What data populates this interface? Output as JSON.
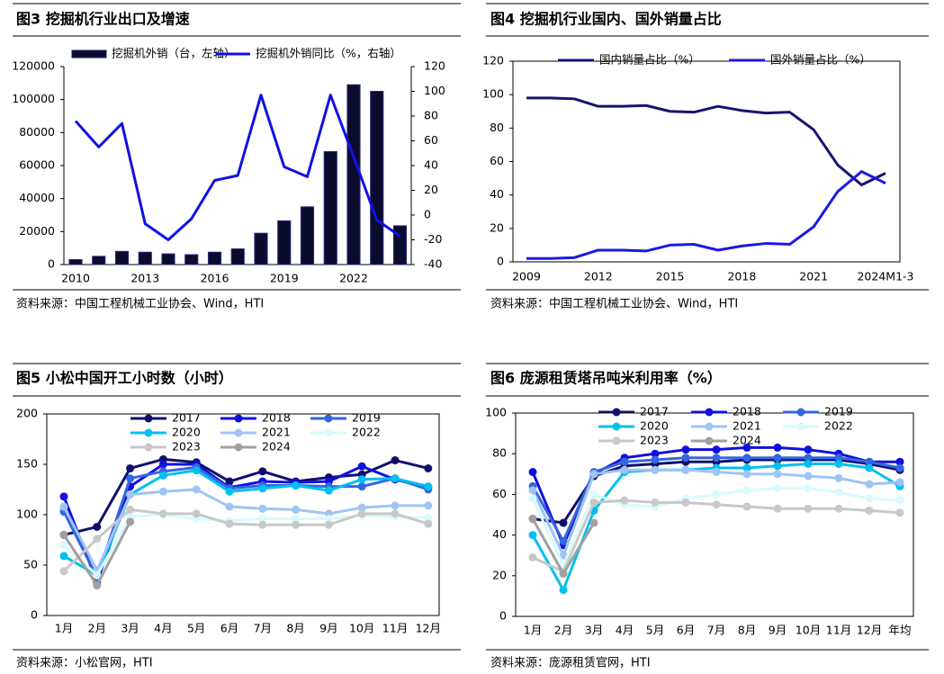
{
  "chart_data": [
    {
      "type": "bar",
      "title": "图3  挖掘机行业出口及增速",
      "source": "资料来源：中国工程机械工业协会、Wind，HTI",
      "categories": [
        "2010",
        null,
        null,
        "2013",
        null,
        null,
        "2016",
        null,
        null,
        "2019",
        null,
        null,
        "2022",
        null,
        null
      ],
      "series": [
        {
          "name": "挖掘机外销（台，左轴）",
          "type": "bar",
          "color": "#0b0b2e",
          "values": [
            3000,
            5000,
            8000,
            7500,
            6500,
            6000,
            7500,
            9500,
            19000,
            26500,
            35000,
            68500,
            109000,
            105000,
            23500
          ]
        },
        {
          "name": "挖掘机外销同比（%，右轴）",
          "type": "line",
          "axis": "y2",
          "color": "#1010e8",
          "values": [
            76,
            55,
            74,
            -7,
            -20,
            -3,
            28,
            32,
            97,
            39,
            31,
            97,
            47,
            -4,
            -17
          ]
        }
      ],
      "ylim": [
        0,
        120000
      ],
      "yticks": [
        0,
        20000,
        40000,
        60000,
        80000,
        100000,
        120000
      ],
      "y2lim": [
        -40,
        120
      ],
      "y2ticks": [
        -40,
        -20,
        0,
        20,
        40,
        60,
        80,
        100,
        120
      ],
      "legend": "top"
    },
    {
      "type": "line",
      "title": "图4  挖掘机行业国内、国外销量占比",
      "source": "资料来源：中国工程机械工业协会、Wind，HTI",
      "categories": [
        "2009",
        null,
        null,
        "2012",
        null,
        null,
        "2015",
        null,
        null,
        "2018",
        null,
        null,
        "2021",
        null,
        null,
        "2024M1-3"
      ],
      "series": [
        {
          "name": "国内销量占比（%）",
          "color": "#15156e",
          "values": [
            98,
            98,
            97.5,
            93,
            93,
            93.5,
            90,
            89.5,
            93,
            90.5,
            89,
            89.5,
            79,
            58,
            46,
            53
          ]
        },
        {
          "name": "国外销量占比（%）",
          "color": "#1a1ae6",
          "values": [
            2,
            2,
            2.5,
            7,
            7,
            6.5,
            10,
            10.5,
            7,
            9.5,
            11,
            10.5,
            21,
            42,
            54,
            47
          ]
        }
      ],
      "ylim": [
        0,
        120
      ],
      "yticks": [
        0,
        20,
        40,
        60,
        80,
        100,
        120
      ],
      "legend": "top"
    },
    {
      "type": "line",
      "title": "图5  小松中国开工小时数（小时）",
      "source": "资料来源：小松官网，HTI",
      "markers": true,
      "categories": [
        "1月",
        "2月",
        "3月",
        "4月",
        "5月",
        "6月",
        "7月",
        "8月",
        "9月",
        "10月",
        "11月",
        "12月"
      ],
      "series": [
        {
          "name": "2017",
          "color": "#10106a",
          "values": [
            80,
            88,
            146,
            155,
            152,
            133,
            143,
            133,
            137,
            140,
            154,
            146
          ]
        },
        {
          "name": "2018",
          "color": "#1010e0",
          "values": [
            118,
            33,
            128,
            150,
            150,
            127,
            133,
            132,
            133,
            148,
            135,
            127
          ]
        },
        {
          "name": "2019",
          "color": "#3566e0",
          "values": [
            103,
            38,
            136,
            143,
            147,
            126,
            129,
            129,
            128,
            128,
            136,
            125
          ]
        },
        {
          "name": "2020",
          "color": "#00c0f0",
          "values": [
            59,
            40,
            120,
            139,
            144,
            123,
            126,
            129,
            124,
            135,
            136,
            128
          ]
        },
        {
          "name": "2021",
          "color": "#a0c4f4",
          "values": [
            108,
            45,
            120,
            123,
            125,
            108,
            106,
            105,
            101,
            107,
            109,
            109
          ]
        },
        {
          "name": "2022",
          "color": "#d8fafc",
          "values": [
            70,
            40,
            98,
            100,
            96,
            94,
            96,
            96,
            96,
            99,
            98,
            97
          ]
        },
        {
          "name": "2023",
          "color": "#c8c8c8",
          "values": [
            44,
            76,
            105,
            101,
            101,
            91,
            90,
            90,
            90,
            101,
            101,
            91
          ]
        },
        {
          "name": "2024",
          "color": "#a0a0a0",
          "values": [
            80,
            30,
            93,
            null,
            null,
            null,
            null,
            null,
            null,
            null,
            null,
            null
          ]
        }
      ],
      "ylim": [
        0,
        200
      ],
      "yticks": [
        0,
        50,
        100,
        150,
        200
      ],
      "legend": "top"
    },
    {
      "type": "line",
      "title": "图6  庞源租赁塔吊吨米利用率（%）",
      "source": "资料来源：庞源租赁官网，HTI",
      "markers": true,
      "categories": [
        "1月",
        "2月",
        "3月",
        "4月",
        "5月",
        "6月",
        "7月",
        "8月",
        "9月",
        "10月",
        "11月",
        "12月",
        "年均"
      ],
      "series": [
        {
          "name": "2017",
          "color": "#10106a",
          "values": [
            48,
            46,
            69,
            74,
            75,
            76,
            76,
            77,
            77,
            77,
            77,
            75,
            72
          ]
        },
        {
          "name": "2018",
          "color": "#1010e0",
          "values": [
            71,
            35,
            70,
            78,
            80,
            82,
            82,
            83,
            83,
            82,
            80,
            76,
            76
          ]
        },
        {
          "name": "2019",
          "color": "#3566e0",
          "values": [
            64,
            37,
            71,
            76,
            77,
            78,
            78,
            78,
            78,
            78,
            78,
            76,
            73
          ]
        },
        {
          "name": "2020",
          "color": "#00c0f0",
          "values": [
            40,
            13,
            52,
            71,
            72,
            72,
            73,
            73,
            74,
            75,
            75,
            73,
            64
          ]
        },
        {
          "name": "2021",
          "color": "#a0c4f4",
          "values": [
            62,
            30,
            70,
            72,
            72,
            72,
            71,
            70,
            70,
            69,
            68,
            65,
            66
          ]
        },
        {
          "name": "2022",
          "color": "#d8fafc",
          "values": [
            58,
            25,
            60,
            55,
            54,
            58,
            60,
            62,
            63,
            63,
            61,
            58,
            57
          ]
        },
        {
          "name": "2023",
          "color": "#c8c8c8",
          "values": [
            29,
            22,
            56,
            57,
            56,
            56,
            55,
            54,
            53,
            53,
            53,
            52,
            51
          ]
        },
        {
          "name": "2024",
          "color": "#a0a0a0",
          "values": [
            48,
            21,
            46,
            null,
            null,
            null,
            null,
            null,
            null,
            null,
            null,
            null,
            null
          ]
        }
      ],
      "ylim": [
        0,
        100
      ],
      "yticks": [
        0,
        20,
        40,
        60,
        80,
        100
      ],
      "legend": "top"
    }
  ]
}
